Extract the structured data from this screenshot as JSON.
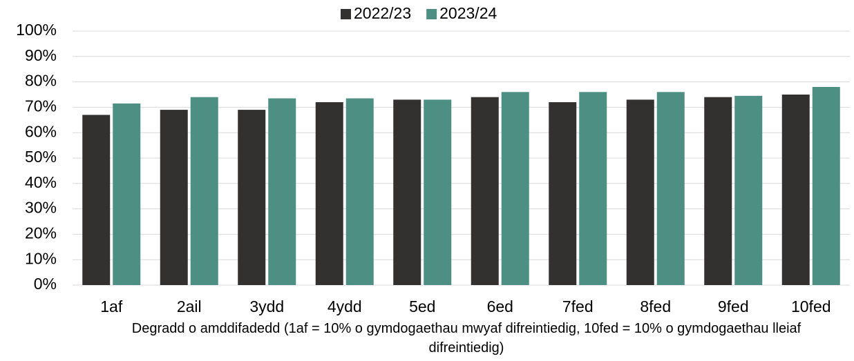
{
  "chart_data": {
    "type": "bar",
    "x_label": "Degradd o amddifadedd (1af = 10% o gymdogaethau mwyaf difreintiedig, 10fed = 10% o gymdogaethau lleiaf difreintiedig)",
    "categories": [
      "1af",
      "2ail",
      "3ydd",
      "4ydd",
      "5ed",
      "6ed",
      "7fed",
      "8fed",
      "9fed",
      "10fed"
    ],
    "series": [
      {
        "name": "2022/23",
        "color": "#333130",
        "values": [
          67,
          69,
          69,
          72,
          73,
          74,
          72,
          73,
          74,
          75
        ]
      },
      {
        "name": "2023/24",
        "color": "#4e8f83",
        "values": [
          71.5,
          74,
          73.5,
          73.5,
          73,
          76,
          76,
          76,
          74.5,
          78
        ]
      }
    ],
    "ylim": [
      0,
      100
    ],
    "yticks": [
      {
        "value": 0,
        "label": "0%"
      },
      {
        "value": 10,
        "label": "10%"
      },
      {
        "value": 20,
        "label": "20%"
      },
      {
        "value": 30,
        "label": "30%"
      },
      {
        "value": 40,
        "label": "40%"
      },
      {
        "value": 50,
        "label": "50%"
      },
      {
        "value": 60,
        "label": "60%"
      },
      {
        "value": 70,
        "label": "70%"
      },
      {
        "value": 80,
        "label": "80%"
      },
      {
        "value": 90,
        "label": "90%"
      },
      {
        "value": 100,
        "label": "100%"
      }
    ],
    "grid": true,
    "legend": "top"
  }
}
